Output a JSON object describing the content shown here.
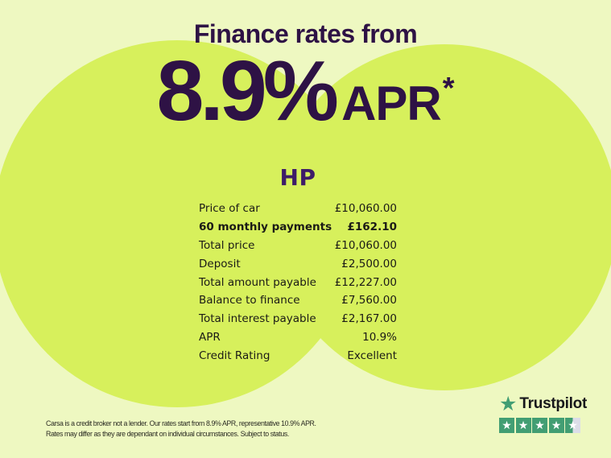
{
  "header": {
    "title": "Finance rates from",
    "rate": "8.9%",
    "rate_suffix": "APR",
    "rate_asterisk": "*"
  },
  "finance_table": {
    "title": "HP",
    "rows": [
      {
        "label": "Price of car",
        "value": "£10,060.00",
        "bold": false
      },
      {
        "label": "60 monthly payments",
        "value": "£162.10",
        "bold": true
      },
      {
        "label": "Total price",
        "value": "£10,060.00",
        "bold": false
      },
      {
        "label": "Deposit",
        "value": "£2,500.00",
        "bold": false
      },
      {
        "label": "Total amount payable",
        "value": "£12,227.00",
        "bold": false
      },
      {
        "label": "Balance to finance",
        "value": "£7,560.00",
        "bold": false
      },
      {
        "label": "Total interest payable",
        "value": "£2,167.00",
        "bold": false
      },
      {
        "label": "APR",
        "value": "10.9%",
        "bold": false
      },
      {
        "label": "Credit Rating",
        "value": "Excellent",
        "bold": false
      }
    ]
  },
  "disclaimer": {
    "lines": [
      "Carsa is a credit broker not a lender. Our rates start from 8.9% APR, representative 10.9% APR.",
      "Rates may differ as they are dependant on individual circumstances. Subject to status."
    ]
  },
  "trustpilot": {
    "brand": "Trustpilot",
    "rating": 4.5,
    "star_glyph": "★",
    "stars": [
      "full",
      "full",
      "full",
      "full",
      "half"
    ]
  },
  "colors": {
    "background": "#eef8c1",
    "circle_green": "#d7f05c",
    "headline_purple": "#2e1245",
    "hp_purple": "#3e1c68",
    "table_text": "#1b1b16",
    "disclaimer_text": "#2c2c24",
    "trustpilot_green": "#429e73",
    "trustpilot_star_muted": "#dcdde8",
    "trustpilot_text": "#17171b",
    "star_white": "#ffffff"
  }
}
